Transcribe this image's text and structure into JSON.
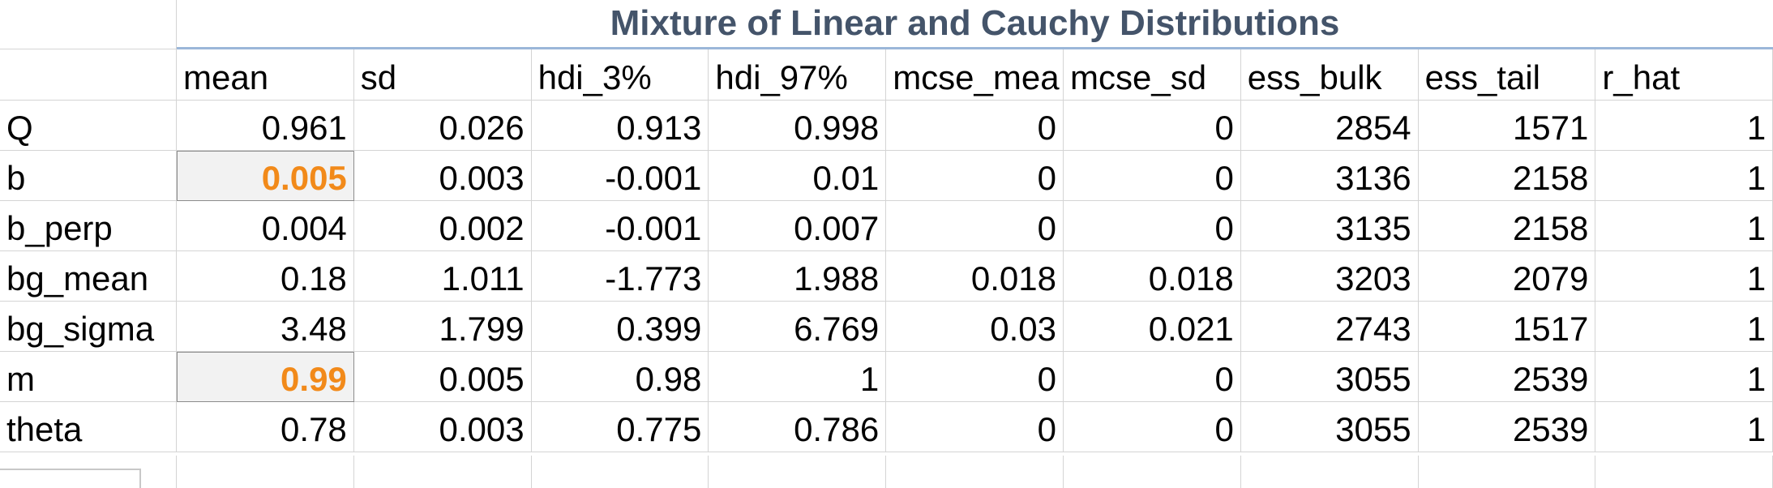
{
  "title": "Mixture of Linear and Cauchy Distributions",
  "columns": [
    "mean",
    "sd",
    "hdi_3%",
    "hdi_97%",
    "mcse_mea",
    "mcse_sd",
    "ess_bulk",
    "ess_tail",
    "r_hat"
  ],
  "rows": [
    {
      "label": "Q",
      "values": [
        "0.961",
        "0.026",
        "0.913",
        "0.998",
        "0",
        "0",
        "2854",
        "1571",
        "1"
      ]
    },
    {
      "label": "b",
      "values": [
        "0.005",
        "0.003",
        "-0.001",
        "0.01",
        "0",
        "0",
        "3136",
        "2158",
        "1"
      ],
      "highlight_mean": true
    },
    {
      "label": "b_perp",
      "values": [
        "0.004",
        "0.002",
        "-0.001",
        "0.007",
        "0",
        "0",
        "3135",
        "2158",
        "1"
      ]
    },
    {
      "label": "bg_mean",
      "values": [
        "0.18",
        "1.011",
        "-1.773",
        "1.988",
        "0.018",
        "0.018",
        "3203",
        "2079",
        "1"
      ]
    },
    {
      "label": "bg_sigma",
      "values": [
        "3.48",
        "1.799",
        "0.399",
        "6.769",
        "0.03",
        "0.021",
        "2743",
        "1517",
        "1"
      ]
    },
    {
      "label": "m",
      "values": [
        "0.99",
        "0.005",
        "0.98",
        "1",
        "0",
        "0",
        "3055",
        "2539",
        "1"
      ],
      "highlight_mean": true
    },
    {
      "label": "theta",
      "values": [
        "0.78",
        "0.003",
        "0.775",
        "0.786",
        "0",
        "0",
        "3055",
        "2539",
        "1"
      ]
    }
  ],
  "colors": {
    "title": "#44546a",
    "title_underline": "#9bb7d9",
    "highlight_text": "#f28a1a",
    "highlight_fill": "#f2f2f2",
    "gridline": "#d4d4d4"
  }
}
